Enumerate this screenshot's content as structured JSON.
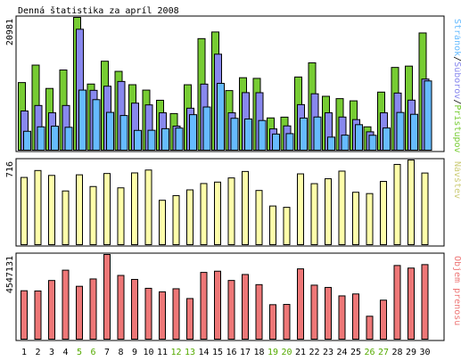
{
  "chart_data": {
    "type": "bar",
    "title": "Denná štatistika za apríl 2008",
    "categories": [
      "1",
      "2",
      "3",
      "4",
      "5",
      "6",
      "7",
      "8",
      "9",
      "10",
      "11",
      "12",
      "13",
      "14",
      "15",
      "16",
      "17",
      "18",
      "19",
      "20",
      "21",
      "22",
      "23",
      "24",
      "25",
      "26",
      "27",
      "28",
      "29",
      "30"
    ],
    "weekend_days": [
      "5",
      "6",
      "12",
      "13",
      "19",
      "20",
      "26",
      "27"
    ],
    "colors": {
      "weekday_label": "#000000",
      "weekend_label": "#55aa00",
      "pristupov": "#77cc33",
      "suborov": "#8888ee",
      "stranok": "#66bbff",
      "navstev": "#ffffaa",
      "objem": "#ee7777"
    },
    "panels": [
      {
        "id": "top",
        "ylabel_max": "20981",
        "ylabel_max_value": 20981,
        "legend_parts": [
          {
            "text": "Stránok",
            "color": "#66bbff"
          },
          {
            "text": "/",
            "color": "#000000"
          },
          {
            "text": "Súborov",
            "color": "#8888ee"
          },
          {
            "text": "/",
            "color": "#000000"
          },
          {
            "text": "Prístupov",
            "color": "#77cc33"
          }
        ],
        "series": [
          {
            "name": "Prístupov",
            "values": [
              10752,
              13493,
              9831,
              12724,
              20981,
              10521,
              14104,
              12512,
              10417,
              9570,
              7975,
              5890,
              10410,
              17648,
              18689,
              9496,
              11514,
              11410,
              5205,
              5327,
              11623,
              13851,
              8599,
              8234,
              7887,
              3810,
              9256,
              13128,
              13335,
              18538
            ]
          },
          {
            "name": "Súborov",
            "values": [
              6295,
              7157,
              6008,
              7157,
              19121,
              9534,
              10185,
              10926,
              7526,
              7249,
              6008,
              3920,
              6731,
              10510,
              15208,
              6007,
              9174,
              9163,
              3483,
              3953,
              7289,
              8994,
              6008,
              5343,
              4943,
              3024,
              6006,
              9107,
              7995,
              11305
            ]
          },
          {
            "name": "Stránok",
            "values": [
              3109,
              3805,
              3910,
              3734,
              9574,
              8073,
              6076,
              5582,
              3249,
              3266,
              3514,
              3616,
              5715,
              6920,
              10627,
              5146,
              5038,
              4799,
              2674,
              2739,
              5181,
              5350,
              2193,
              2502,
              4147,
              2483,
              3624,
              6063,
              5774,
              11008
            ]
          }
        ]
      },
      {
        "id": "mid",
        "ylabel_max": "716",
        "ylabel_max_value": 716,
        "legend_parts": [
          {
            "text": "Návštev",
            "color": "#cccc77"
          }
        ],
        "series": [
          {
            "name": "Návštev",
            "values": [
              570,
              628,
              587,
              457,
              592,
              494,
              603,
              483,
              608,
              632,
              379,
              418,
              466,
              519,
              531,
              566,
              620,
              461,
              331,
              320,
              600,
              518,
              559,
              623,
              446,
              435,
              537,
              679,
              716,
              607
            ]
          }
        ]
      },
      {
        "id": "bottom",
        "ylabel_max": "4547131",
        "ylabel_max_value": 4547131,
        "legend_parts": [
          {
            "text": "Objem prenosu",
            "color": "#ee7777"
          }
        ],
        "series": [
          {
            "name": "Objem prenosu",
            "values": [
              2620000,
              2609000,
              3165000,
              3713000,
              2857000,
              3247000,
              4547131,
              3434000,
              3222000,
              2750000,
              2563000,
              2726000,
              2206000,
              3595000,
              3659000,
              3167000,
              3483000,
              2945000,
              1879000,
              1893000,
              3783000,
              2917000,
              2797000,
              2347000,
              2450000,
              1265000,
              2120000,
              3962000,
              3825000,
              4009000
            ]
          }
        ]
      }
    ]
  }
}
